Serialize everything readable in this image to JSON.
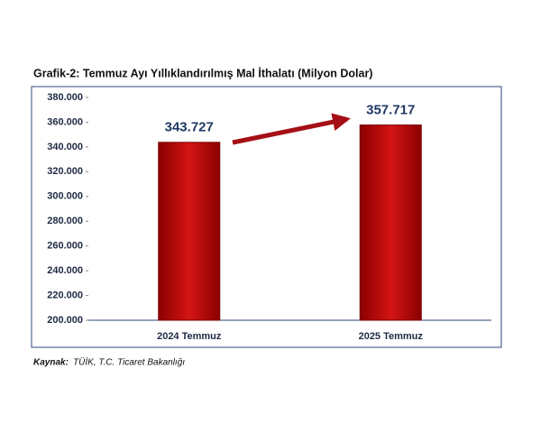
{
  "chart_data": {
    "type": "bar",
    "title": "Grafik-2: Temmuz Ayı Yıllıklandırılmış Mal İthalatı (Milyon Dolar)",
    "categories": [
      "2024 Temmuz",
      "2025 Temmuz"
    ],
    "values": [
      343727,
      357717
    ],
    "value_labels": [
      "343.727",
      "357.717"
    ],
    "color": "#c00000",
    "ylim": [
      200000,
      380000
    ],
    "yticks": [
      {
        "value": 200000,
        "label": "200.000"
      },
      {
        "value": 220000,
        "label": "220.000"
      },
      {
        "value": 240000,
        "label": "240.000"
      },
      {
        "value": 260000,
        "label": "260.000"
      },
      {
        "value": 280000,
        "label": "280.000"
      },
      {
        "value": 300000,
        "label": "300.000"
      },
      {
        "value": 320000,
        "label": "320.000"
      },
      {
        "value": 340000,
        "label": "340.000"
      },
      {
        "value": 360000,
        "label": "360.000"
      },
      {
        "value": 380000,
        "label": "380.000"
      }
    ],
    "source_label": "Kaynak:",
    "source": "TÜİK, T.C. Ticaret Bakanlığı"
  }
}
